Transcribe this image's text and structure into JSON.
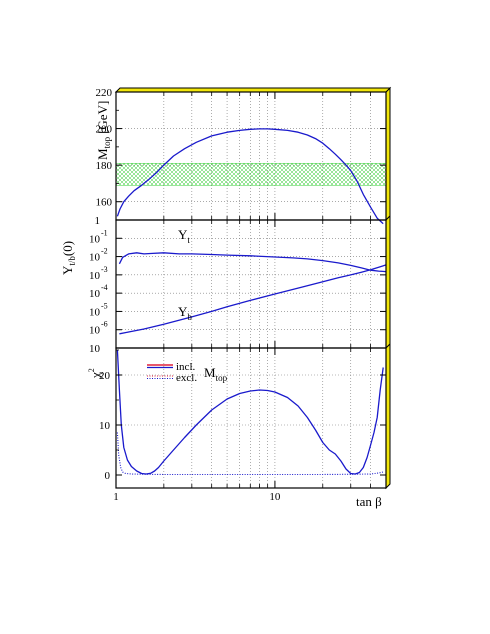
{
  "chart_data": [
    {
      "type": "line",
      "panel": "top",
      "ylabel": "M",
      "ylabel_sub": "top",
      "ylabel_unit": "[GeV]",
      "xscale": "log",
      "xlim": [
        1,
        50
      ],
      "ylim": [
        150,
        220
      ],
      "yticks": [
        "160",
        "180",
        "200",
        "220"
      ],
      "grid": true,
      "band": {
        "ymin": 169,
        "ymax": 181,
        "color": "#33cc33",
        "pattern": "crosshatch"
      },
      "series": [
        {
          "color": "#1a1acc",
          "x": [
            1.02,
            1.06,
            1.12,
            1.2,
            1.3,
            1.45,
            1.6,
            1.8,
            2.0,
            2.3,
            2.7,
            3.2,
            4.0,
            5.0,
            6.0,
            7.0,
            8.0,
            9.0,
            10.0,
            12.0,
            14.0,
            16.0,
            18.0,
            20.0,
            22.0,
            24.0,
            26.0,
            28.0,
            30.0,
            33.0,
            36.0,
            40.0,
            44.0,
            48.0
          ],
          "y": [
            152,
            156,
            160,
            163,
            166,
            169,
            172,
            176,
            180,
            185,
            189,
            192.5,
            196,
            198,
            199,
            199.6,
            199.8,
            199.8,
            199.6,
            199,
            198,
            196.5,
            194.5,
            192,
            189,
            186,
            183,
            180,
            177,
            171,
            164,
            157,
            151,
            148
          ]
        }
      ]
    },
    {
      "type": "line",
      "panel": "middle",
      "ylabel": "Y",
      "ylabel_sub": "t/b",
      "ylabel_suffix": "(0)",
      "xscale": "log",
      "yscale": "log",
      "xlim": [
        1,
        50
      ],
      "ylim": [
        1e-07,
        1
      ],
      "yticks": [
        {
          "base": "1",
          "exp": ""
        },
        {
          "base": "10",
          "exp": "-1"
        },
        {
          "base": "10",
          "exp": "-2"
        },
        {
          "base": "10",
          "exp": "-3"
        },
        {
          "base": "10",
          "exp": "-4"
        },
        {
          "base": "10",
          "exp": "-5"
        },
        {
          "base": "10",
          "exp": "-6"
        },
        {
          "base": "10",
          "exp": ""
        }
      ],
      "grid": true,
      "series": [
        {
          "name": "Y",
          "name_sub": "t",
          "color": "#1a1acc",
          "x": [
            1.05,
            1.1,
            1.2,
            1.35,
            1.5,
            1.7,
            2.0,
            2.5,
            3.0,
            4.0,
            5.0,
            7.0,
            10.0,
            13.0,
            16.0,
            20.0,
            25.0,
            30.0,
            35.0,
            40.0,
            45.0,
            50.0
          ],
          "y": [
            0.004,
            0.009,
            0.014,
            0.016,
            0.014,
            0.015,
            0.016,
            0.014,
            0.014,
            0.013,
            0.012,
            0.011,
            0.0095,
            0.0085,
            0.0075,
            0.006,
            0.0045,
            0.0033,
            0.0024,
            0.0018,
            0.0016,
            0.0015
          ]
        },
        {
          "name": "Y",
          "name_sub": "b",
          "color": "#1a1acc",
          "x": [
            1.05,
            1.2,
            1.5,
            2.0,
            3.0,
            4.0,
            5.0,
            7.0,
            10.0,
            15.0,
            20.0,
            25.0,
            30.0,
            35.0,
            40.0,
            45.0,
            50.0
          ],
          "y": [
            6e-07,
            7.5e-07,
            1.1e-06,
            2e-06,
            5e-06,
            1e-05,
            1.8e-05,
            4e-05,
            9e-05,
            0.00022,
            0.00042,
            0.0007,
            0.001,
            0.0014,
            0.0019,
            0.0026,
            0.0035
          ]
        }
      ]
    },
    {
      "type": "line",
      "panel": "bottom",
      "ylabel": "χ",
      "ylabel_exp": "2",
      "xlabel": "tan β",
      "xscale": "log",
      "xlim": [
        1,
        50
      ],
      "ylim": [
        -1,
        27
      ],
      "xticks": [
        "1",
        "10"
      ],
      "yticks": [
        "0",
        "10",
        "20"
      ],
      "grid": true,
      "legend_title": "M",
      "legend_title_sub": "top",
      "series": [
        {
          "name": "incl.",
          "style": "solid",
          "color": "#1a1acc",
          "x": [
            1.02,
            1.05,
            1.08,
            1.12,
            1.18,
            1.25,
            1.35,
            1.45,
            1.55,
            1.65,
            1.75,
            1.85,
            2.0,
            2.3,
            2.7,
            3.2,
            4.0,
            5.0,
            6.0,
            7.0,
            8.0,
            9.0,
            10.0,
            12.0,
            14.0,
            16.0,
            18.0,
            20.0,
            22.0,
            24.0,
            26.0,
            28.0,
            30.0,
            32.0,
            34.0,
            36.0,
            38.0,
            40.0,
            42.0,
            44.0,
            46.0,
            48.0
          ],
          "y": [
            25,
            17,
            10,
            5.5,
            3,
            1.7,
            0.8,
            0.3,
            0.2,
            0.35,
            0.8,
            1.5,
            2.8,
            5,
            7.5,
            10,
            13,
            15.2,
            16.3,
            16.8,
            17,
            16.9,
            16.6,
            15.5,
            13.8,
            11.5,
            9,
            6.5,
            5,
            4.2,
            2.8,
            1.2,
            0.3,
            0.2,
            0.5,
            1.5,
            3.5,
            6,
            8.5,
            11.5,
            17,
            21.5
          ]
        },
        {
          "name": "excl.",
          "style": "dotted",
          "color": "#1a1acc",
          "x": [
            1.02,
            1.04,
            1.07,
            1.1,
            1.15,
            1.25,
            1.5,
            2.0,
            3.0,
            5.0,
            10.0,
            20.0,
            30.0,
            40.0,
            45.0,
            48.0
          ],
          "y": [
            8.5,
            4,
            1.5,
            0.6,
            0.3,
            0.2,
            0.15,
            0.1,
            0.1,
            0.1,
            0.1,
            0.1,
            0.15,
            0.2,
            0.4,
            0.6
          ]
        }
      ]
    }
  ]
}
